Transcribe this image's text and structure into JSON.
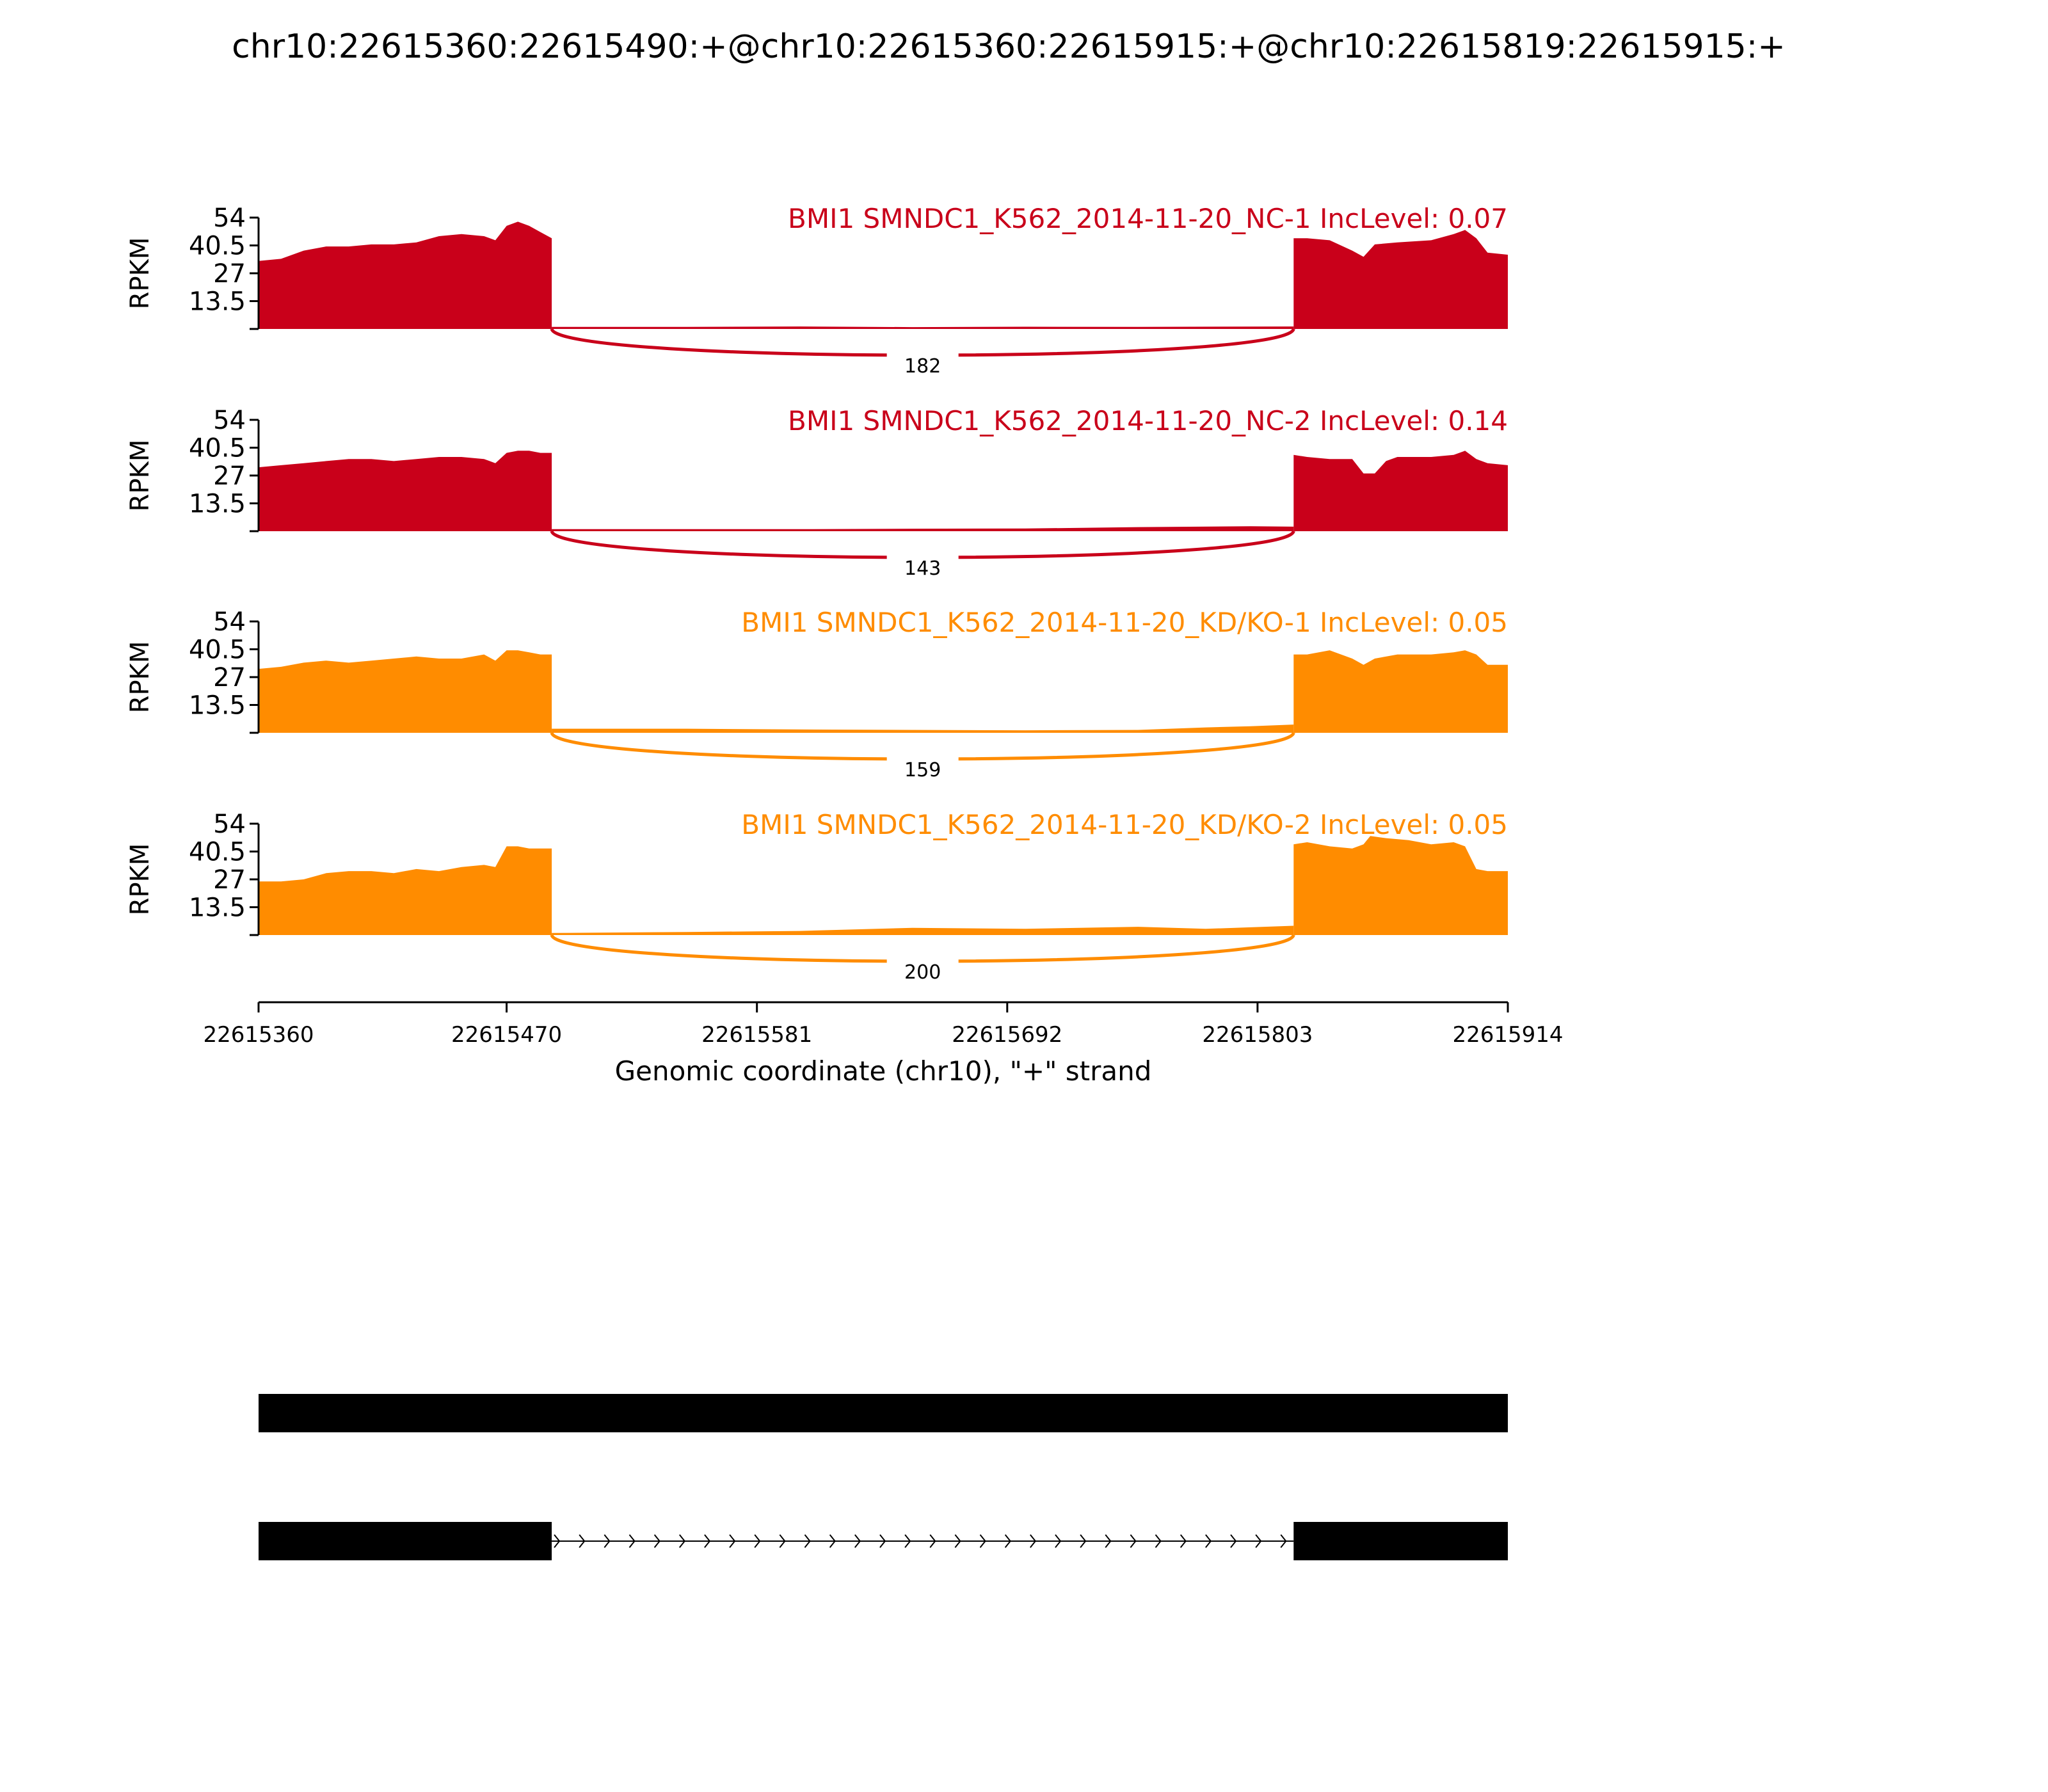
{
  "title": "chr10:22615360:22615490:+@chr10:22615360:22615915:+@chr10:22615819:22615915:+",
  "chart_data": {
    "type": "area",
    "title": "chr10:22615360:22615490:+@chr10:22615360:22615915:+@chr10:22615819:22615915:+",
    "xlabel": "Genomic coordinate (chr10), \"+\" strand",
    "ylabel": "RPKM",
    "xlim": [
      22615360,
      22615914
    ],
    "ylim": [
      0,
      54
    ],
    "x_ticks": [
      "22615360",
      "22615470",
      "22615581",
      "22615692",
      "22615803",
      "22615914"
    ],
    "y_ticks": [
      "13.5",
      "27",
      "40.5",
      "54"
    ],
    "exon_regions": [
      [
        22615360,
        22615490
      ],
      [
        22615819,
        22615914
      ]
    ],
    "series": [
      {
        "name": "BMI1 SMNDC1_K562_2014-11-20_NC-1 IncLevel: 0.07",
        "color": "#c9001a",
        "junction_count": "182",
        "exon1": {
          "x": [
            22615360,
            22615370,
            22615380,
            22615390,
            22615400,
            22615410,
            22615420,
            22615430,
            22615440,
            22615450,
            22615460,
            22615465,
            22615470,
            22615475,
            22615480,
            22615485,
            22615490
          ],
          "y": [
            33,
            34,
            38,
            40,
            40,
            41,
            41,
            42,
            45,
            46,
            45,
            43,
            50,
            52,
            50,
            47,
            44
          ]
        },
        "intron": {
          "x": [
            22615490,
            22615550,
            22615600,
            22615650,
            22615700,
            22615750,
            22615819
          ],
          "y": [
            1.0,
            1.0,
            1.2,
            0.9,
            1.1,
            1.0,
            1.2
          ]
        },
        "exon2": {
          "x": [
            22615819,
            22615825,
            22615835,
            22615845,
            22615850,
            22615855,
            22615865,
            22615880,
            22615890,
            22615895,
            22615900,
            22615905,
            22615914
          ],
          "y": [
            44,
            44,
            43,
            38,
            35,
            41,
            42,
            43,
            46,
            48,
            44,
            37,
            36
          ]
        }
      },
      {
        "name": "BMI1 SMNDC1_K562_2014-11-20_NC-2 IncLevel: 0.14",
        "color": "#c9001a",
        "junction_count": "143",
        "exon1": {
          "x": [
            22615360,
            22615370,
            22615380,
            22615390,
            22615400,
            22615410,
            22615420,
            22615430,
            22615440,
            22615450,
            22615460,
            22615465,
            22615470,
            22615475,
            22615480,
            22615485,
            22615490
          ],
          "y": [
            31,
            32,
            33,
            34,
            35,
            35,
            34,
            35,
            36,
            36,
            35,
            33,
            38,
            39,
            39,
            38,
            38
          ]
        },
        "intron": {
          "x": [
            22615490,
            22615550,
            22615600,
            22615650,
            22615700,
            22615750,
            22615800,
            22615819
          ],
          "y": [
            1.0,
            1.0,
            1.0,
            1.2,
            1.3,
            2.0,
            2.4,
            2.2
          ]
        },
        "exon2": {
          "x": [
            22615819,
            22615825,
            22615835,
            22615845,
            22615850,
            22615855,
            22615860,
            22615865,
            22615880,
            22615890,
            22615895,
            22615900,
            22615905,
            22615914
          ],
          "y": [
            37,
            36,
            35,
            35,
            28,
            28,
            34,
            36,
            36,
            37,
            39,
            35,
            33,
            32
          ]
        }
      },
      {
        "name": "BMI1 SMNDC1_K562_2014-11-20_KD/KO-1 IncLevel: 0.05",
        "color": "#ff8c00",
        "junction_count": "159",
        "exon1": {
          "x": [
            22615360,
            22615370,
            22615380,
            22615390,
            22615400,
            22615410,
            22615420,
            22615430,
            22615440,
            22615450,
            22615460,
            22615465,
            22615470,
            22615475,
            22615480,
            22615485,
            22615490
          ],
          "y": [
            31,
            32,
            34,
            35,
            34,
            35,
            36,
            37,
            36,
            36,
            38,
            35,
            40,
            40,
            39,
            38,
            38
          ]
        },
        "intron": {
          "x": [
            22615490,
            22615550,
            22615600,
            22615650,
            22615700,
            22615750,
            22615780,
            22615800,
            22615819
          ],
          "y": [
            2.0,
            2.0,
            1.6,
            1.4,
            1.2,
            1.4,
            2.6,
            3.2,
            4.0
          ]
        },
        "exon2": {
          "x": [
            22615819,
            22615825,
            22615835,
            22615845,
            22615850,
            22615855,
            22615865,
            22615880,
            22615890,
            22615895,
            22615900,
            22615905,
            22615914
          ],
          "y": [
            38,
            38,
            40,
            36,
            33,
            36,
            38,
            38,
            39,
            40,
            38,
            33,
            33
          ]
        }
      },
      {
        "name": "BMI1 SMNDC1_K562_2014-11-20_KD/KO-2 IncLevel: 0.05",
        "color": "#ff8c00",
        "junction_count": "200",
        "exon1": {
          "x": [
            22615360,
            22615370,
            22615380,
            22615390,
            22615400,
            22615410,
            22615420,
            22615430,
            22615440,
            22615450,
            22615460,
            22615465,
            22615470,
            22615475,
            22615480,
            22615485,
            22615490
          ],
          "y": [
            26,
            26,
            27,
            30,
            31,
            31,
            30,
            32,
            31,
            33,
            34,
            33,
            43,
            43,
            42,
            42,
            42
          ]
        },
        "intron": {
          "x": [
            22615490,
            22615550,
            22615600,
            22615650,
            22615700,
            22615750,
            22615780,
            22615819
          ],
          "y": [
            1.0,
            1.5,
            2.0,
            3.5,
            3.0,
            4.0,
            3.0,
            4.5
          ]
        },
        "exon2": {
          "x": [
            22615819,
            22615825,
            22615835,
            22615845,
            22615850,
            22615853,
            22615860,
            22615870,
            22615880,
            22615890,
            22615895,
            22615900,
            22615905,
            22615914
          ],
          "y": [
            44,
            45,
            43,
            42,
            44,
            48,
            47,
            46,
            44,
            45,
            43,
            32,
            31,
            31
          ]
        }
      }
    ],
    "isoforms": [
      {
        "exons": [
          [
            22615360,
            22615914
          ]
        ]
      },
      {
        "exons": [
          [
            22615360,
            22615490
          ],
          [
            22615819,
            22615914
          ]
        ]
      }
    ]
  }
}
